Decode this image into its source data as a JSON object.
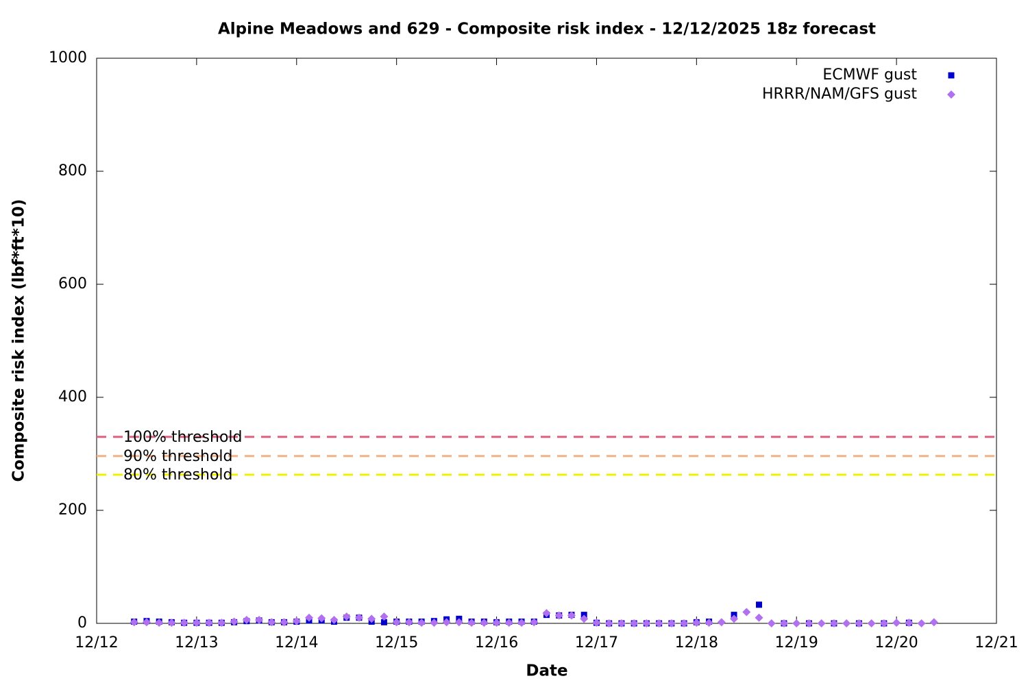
{
  "chart_data": {
    "type": "scatter",
    "title": "Alpine Meadows and 629 - Composite risk index - 12/12/2025 18z forecast",
    "x_label": "Date",
    "y_label": "Composite risk index (lbf*ft*10)",
    "xlim": [
      12,
      21
    ],
    "ylim": [
      0,
      1000
    ],
    "xticks": [
      {
        "value": 12,
        "label": "12/12"
      },
      {
        "value": 13,
        "label": "12/13"
      },
      {
        "value": 14,
        "label": "12/14"
      },
      {
        "value": 15,
        "label": "12/15"
      },
      {
        "value": 16,
        "label": "12/16"
      },
      {
        "value": 17,
        "label": "12/17"
      },
      {
        "value": 18,
        "label": "12/18"
      },
      {
        "value": 19,
        "label": "12/19"
      },
      {
        "value": 20,
        "label": "12/20"
      },
      {
        "value": 21,
        "label": "12/21"
      }
    ],
    "yticks": [
      0,
      200,
      400,
      600,
      800,
      1000
    ],
    "legend": "top-right",
    "thresholds": [
      {
        "name": "100% threshold",
        "value": 330,
        "color": "#e06080"
      },
      {
        "name": "90% threshold",
        "value": 296,
        "color": "#f4b183"
      },
      {
        "name": "80% threshold",
        "value": 263,
        "color": "#f0f000"
      }
    ],
    "series": [
      {
        "name": "ECMWF gust",
        "color": "#0000cc",
        "marker": "square",
        "x": [
          12.375,
          12.5,
          12.625,
          12.75,
          12.875,
          13,
          13.125,
          13.25,
          13.375,
          13.5,
          13.625,
          13.75,
          13.875,
          14,
          14.125,
          14.25,
          14.375,
          14.5,
          14.625,
          14.75,
          14.875,
          15,
          15.125,
          15.25,
          15.375,
          15.5,
          15.625,
          15.75,
          15.875,
          16,
          16.125,
          16.25,
          16.375,
          16.5,
          16.625,
          16.75,
          16.875,
          17,
          17.125,
          17.25,
          17.375,
          17.5,
          17.625,
          17.75,
          17.875,
          18,
          18.125,
          18.375,
          18.625,
          18.875,
          19.125,
          19.375,
          19.625,
          19.875,
          20.125
        ],
        "values": [
          3,
          4,
          3,
          2,
          1,
          1,
          1,
          1,
          2,
          4,
          5,
          2,
          2,
          3,
          5,
          5,
          3,
          10,
          10,
          3,
          2,
          3,
          3,
          3,
          4,
          7,
          8,
          3,
          3,
          2,
          3,
          3,
          3,
          15,
          14,
          15,
          15,
          1,
          0,
          0,
          0,
          0,
          0,
          0,
          0,
          2,
          3,
          15,
          33,
          0,
          0,
          0,
          0,
          0,
          1
        ]
      },
      {
        "name": "HRRR/NAM/GFS gust",
        "color": "#b070f0",
        "marker": "diamond",
        "x": [
          12.375,
          12.5,
          12.625,
          12.75,
          12.875,
          13,
          13.125,
          13.25,
          13.375,
          13.5,
          13.625,
          13.75,
          13.875,
          14,
          14.125,
          14.25,
          14.375,
          14.5,
          14.625,
          14.75,
          14.875,
          15,
          15.125,
          15.25,
          15.375,
          15.5,
          15.625,
          15.75,
          15.875,
          16,
          16.125,
          16.25,
          16.375,
          16.5,
          16.625,
          16.75,
          16.875,
          17,
          17.125,
          17.25,
          17.375,
          17.5,
          17.625,
          17.75,
          17.875,
          18,
          18.125,
          18.25,
          18.375,
          18.5,
          18.625,
          18.75,
          18.875,
          19,
          19.125,
          19.25,
          19.375,
          19.5,
          19.625,
          19.75,
          19.875,
          20,
          20.125,
          20.25,
          20.375
        ],
        "values": [
          2,
          2,
          1,
          1,
          1,
          1,
          1,
          1,
          3,
          6,
          6,
          2,
          2,
          4,
          10,
          9,
          6,
          12,
          10,
          8,
          12,
          2,
          2,
          1,
          1,
          2,
          2,
          1,
          1,
          1,
          1,
          1,
          2,
          18,
          14,
          14,
          8,
          1,
          0,
          0,
          0,
          0,
          0,
          0,
          0,
          1,
          1,
          2,
          8,
          20,
          10,
          0,
          0,
          0,
          0,
          0,
          0,
          0,
          0,
          0,
          0,
          1,
          1,
          0,
          2
        ]
      }
    ]
  }
}
